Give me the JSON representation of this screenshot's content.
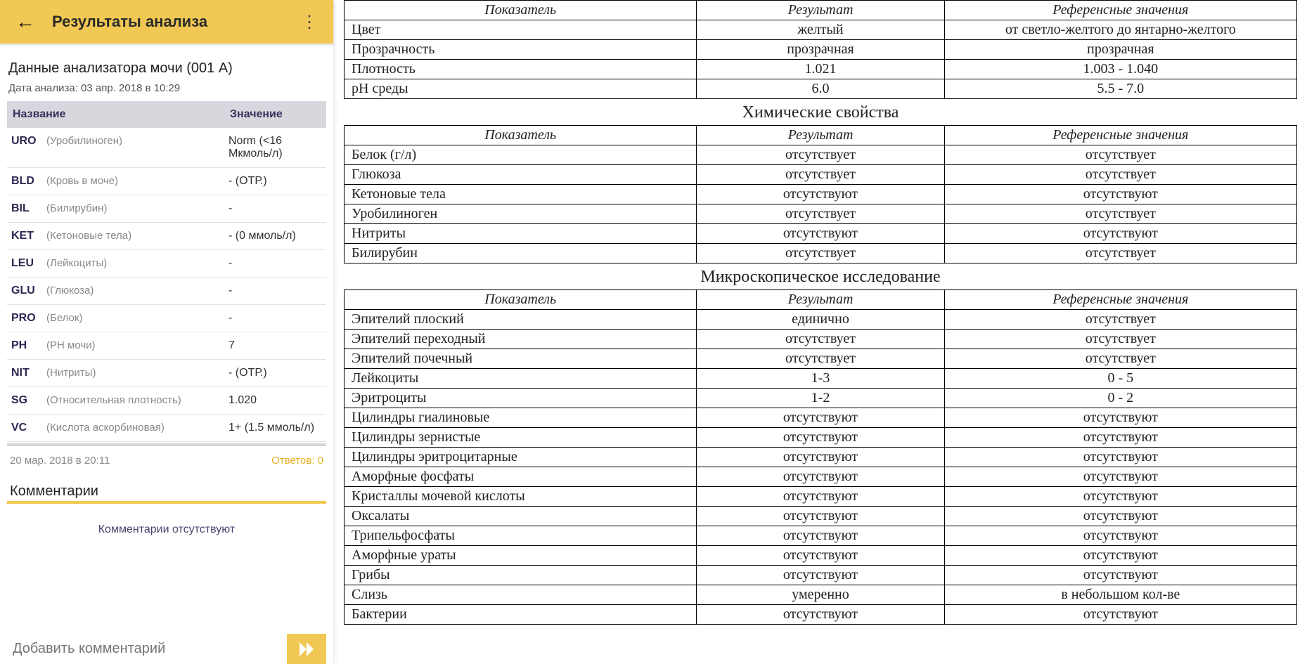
{
  "colors": {
    "accent": "#f1c853",
    "appbar_text": "#2a2a2a",
    "header_bg": "#d9d7dd",
    "header_text": "#36325c",
    "answers": "#e6b020",
    "muted": "#888888",
    "border": "#000000"
  },
  "appbar": {
    "title": "Результаты анализа",
    "back_icon": "←",
    "menu_icon": "⋮"
  },
  "analyzer": {
    "title": "Данные анализатора мочи (001 A)",
    "date_label": "Дата анализа: 03 апр. 2018 в 10:29",
    "columns": {
      "name": "Название",
      "value": "Значение"
    },
    "rows": [
      {
        "code": "URO",
        "name": "(Уробилиноген)",
        "value": "Norm (<16 Мкмоль/л)"
      },
      {
        "code": "BLD",
        "name": "(Кровь в моче)",
        "value": "- (ОТР.)"
      },
      {
        "code": "BIL",
        "name": "(Билирубин)",
        "value": "-"
      },
      {
        "code": "KET",
        "name": "(Кетоновые тела)",
        "value": "- (0 ммоль/л)"
      },
      {
        "code": "LEU",
        "name": "(Лейкоциты)",
        "value": "-"
      },
      {
        "code": "GLU",
        "name": "(Глюкоза)",
        "value": "-"
      },
      {
        "code": "PRO",
        "name": "(Белок)",
        "value": "-"
      },
      {
        "code": "PH",
        "name": "(PH мочи)",
        "value": "7"
      },
      {
        "code": "NIT",
        "name": "(Нитриты)",
        "value": "- (ОТР.)"
      },
      {
        "code": "SG",
        "name": "(Относительная плотность)",
        "value": "1.020"
      },
      {
        "code": "VC",
        "name": "(Кислота аскорбиновая)",
        "value": "1+ (1.5 ммоль/л)"
      }
    ]
  },
  "meta": {
    "timestamp": "20 мар. 2018 в 20:11",
    "answers_label": "Ответов: 0"
  },
  "comments": {
    "title": "Комментарии",
    "empty": "Комментарии отсутствуют",
    "placeholder": "Добавить комментарий"
  },
  "lab": {
    "headers": {
      "param": "Показатель",
      "result": "Результат",
      "reference": "Референсные значения"
    },
    "sections": [
      {
        "title": "",
        "rows": [
          {
            "param": "Цвет",
            "result": "желтый",
            "ref": "от светло-желтого до янтарно-желтого"
          },
          {
            "param": "Прозрачность",
            "result": "прозрачная",
            "ref": "прозрачная"
          },
          {
            "param": "Плотность",
            "result": "1.021",
            "ref": "1.003 - 1.040"
          },
          {
            "param": "pH среды",
            "result": "6.0",
            "ref": "5.5 - 7.0"
          }
        ]
      },
      {
        "title": "Химические свойства",
        "rows": [
          {
            "param": "Белок (г/л)",
            "result": "отсутствует",
            "ref": "отсутствует"
          },
          {
            "param": "Глюкоза",
            "result": "отсутствует",
            "ref": "отсутствует"
          },
          {
            "param": "Кетоновые тела",
            "result": "отсутствуют",
            "ref": "отсутствуют"
          },
          {
            "param": "Уробилиноген",
            "result": "отсутствует",
            "ref": "отсутствует"
          },
          {
            "param": "Нитриты",
            "result": "отсутствуют",
            "ref": "отсутствуют"
          },
          {
            "param": "Билирубин",
            "result": "отсутствует",
            "ref": "отсутствует"
          }
        ]
      },
      {
        "title": "Микроскопическое исследование",
        "rows": [
          {
            "param": "Эпителий плоский",
            "result": "единично",
            "ref": "отсутствует"
          },
          {
            "param": "Эпителий переходный",
            "result": "отсутствует",
            "ref": "отсутствует"
          },
          {
            "param": "Эпителий почечный",
            "result": "отсутствует",
            "ref": "отсутствует"
          },
          {
            "param": "Лейкоциты",
            "result": "1-3",
            "ref": "0 - 5"
          },
          {
            "param": "Эритроциты",
            "result": "1-2",
            "ref": "0 - 2"
          },
          {
            "param": "Цилиндры гиалиновые",
            "result": "отсутствуют",
            "ref": "отсутствуют"
          },
          {
            "param": "Цилиндры зернистые",
            "result": "отсутствуют",
            "ref": "отсутствуют"
          },
          {
            "param": "Цилиндры эритроцитарные",
            "result": "отсутствуют",
            "ref": "отсутствуют"
          },
          {
            "param": "Аморфные фосфаты",
            "result": "отсутствуют",
            "ref": "отсутствуют"
          },
          {
            "param": "Кристаллы мочевой кислоты",
            "result": "отсутствуют",
            "ref": "отсутствуют"
          },
          {
            "param": "Оксалаты",
            "result": "отсутствуют",
            "ref": "отсутствуют"
          },
          {
            "param": "Трипельфосфаты",
            "result": "отсутствуют",
            "ref": "отсутствуют"
          },
          {
            "param": "Аморфные ураты",
            "result": "отсутствуют",
            "ref": "отсутствуют"
          },
          {
            "param": "Грибы",
            "result": "отсутствуют",
            "ref": "отсутствуют"
          },
          {
            "param": "Слизь",
            "result": "умеренно",
            "ref": "в небольшом кол-ве"
          },
          {
            "param": "Бактерии",
            "result": "отсутствуют",
            "ref": "отсутствуют"
          }
        ]
      }
    ]
  }
}
